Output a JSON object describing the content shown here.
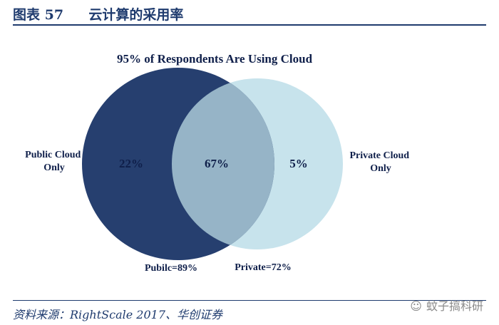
{
  "figure": {
    "label": "图表 57",
    "title": "云计算的采用率"
  },
  "chart_data": {
    "type": "venn",
    "title": "95% of Respondents Are Using Cloud",
    "sets": [
      {
        "name": "Public",
        "label": "Pubilc=89%",
        "value": 89,
        "color": "#263f6f"
      },
      {
        "name": "Private",
        "label": "Private=72%",
        "value": 72,
        "color": "#c7e3ec"
      }
    ],
    "regions": [
      {
        "label": "Public Cloud Only",
        "value": "22%"
      },
      {
        "label": "Both",
        "value": "67%",
        "color": "#96b4c7"
      },
      {
        "label": "Private Cloud Only",
        "value": "5%"
      }
    ],
    "side_labels": {
      "left": [
        "Public Cloud",
        "Only"
      ],
      "right": [
        "Private Cloud",
        "Only"
      ]
    }
  },
  "footer": {
    "source": "资料来源：RightScale 2017、华创证券",
    "watermark": "蚊子搞科研",
    "watermark_icon": "wechat-icon"
  }
}
